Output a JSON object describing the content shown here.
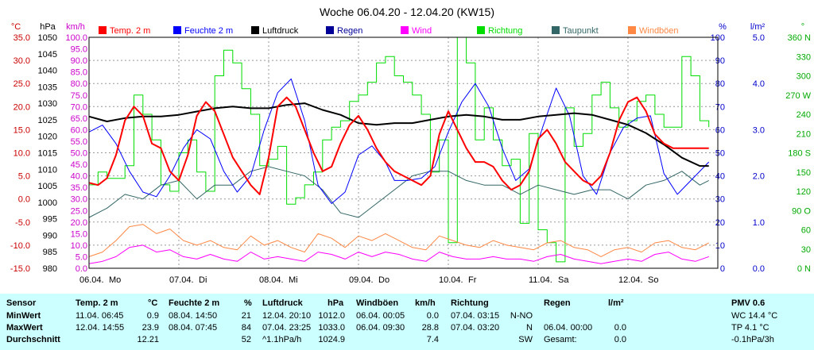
{
  "chart_data": {
    "type": "line",
    "title": "Woche 06.04.20 - 12.04.20 (KW15)",
    "x_ticks": [
      "06.04.",
      "07.04.",
      "08.04.",
      "09.04.",
      "10.04.",
      "11.04.",
      "12.04."
    ],
    "day_labels": [
      "Mo",
      "Di",
      "Mi",
      "Do",
      "Fr",
      "Sa",
      "So"
    ],
    "grid": true,
    "axes": [
      {
        "unit": "°C",
        "color": "#cc0000",
        "min": -15,
        "max": 35,
        "ticks": [
          "35.0",
          "30.0",
          "25.0",
          "20.0",
          "15.0",
          "10.0",
          "5.0",
          "0.0",
          "-5.0",
          "-10.0",
          "-15.0"
        ]
      },
      {
        "unit": "hPa",
        "color": "#000000",
        "min": 980,
        "max": 1050,
        "ticks": [
          "1050",
          "1045",
          "1040",
          "1035",
          "1030",
          "1025",
          "1020",
          "1015",
          "1010",
          "1005",
          "1000",
          "995",
          "990",
          "985",
          "980"
        ]
      },
      {
        "unit": "km/h",
        "color": "#cc00cc",
        "min": 0,
        "max": 100,
        "ticks": [
          "100.0",
          "95.0",
          "90.0",
          "85.0",
          "80.0",
          "75.0",
          "70.0",
          "65.0",
          "60.0",
          "55.0",
          "50.0",
          "45.0",
          "40.0",
          "35.0",
          "30.0",
          "25.0",
          "20.0",
          "15.0",
          "10.0",
          "5.0",
          "0.0"
        ]
      },
      {
        "unit": "%",
        "color": "#0000cc",
        "min": 0,
        "max": 100,
        "ticks": [
          "100",
          "90",
          "80",
          "70",
          "60",
          "50",
          "40",
          "30",
          "20",
          "10",
          "0"
        ]
      },
      {
        "unit": "l/m²",
        "color": "#0000cc",
        "min": 0,
        "max": 5,
        "ticks": [
          "5.0",
          "4.0",
          "3.0",
          "2.0",
          "1.0",
          "0.0"
        ]
      },
      {
        "unit": "°",
        "color": "#00aa00",
        "min": 0,
        "max": 360,
        "ticks": [
          "360 N",
          "330",
          "300",
          "270 W",
          "240",
          "210",
          "180 S",
          "150",
          "120",
          "90 O",
          "60",
          "30",
          "0 N"
        ]
      }
    ],
    "legend": [
      {
        "name": "Temp. 2 m",
        "color": "#ff0000"
      },
      {
        "name": "Feuchte  2 m",
        "color": "#0000ff"
      },
      {
        "name": "Luftdruck",
        "color": "#000000"
      },
      {
        "name": "Regen",
        "color": "#000099"
      },
      {
        "name": "Wind",
        "color": "#ff00ff"
      },
      {
        "name": "Richtung",
        "color": "#00dd00"
      },
      {
        "name": "Taupunkt",
        "color": "#336666"
      },
      {
        "name": "Windböen",
        "color": "#ff8844"
      }
    ],
    "series": [
      {
        "name": "Temp. 2 m",
        "color": "#ff0000",
        "axis": 0,
        "width": 2,
        "x": [
          0,
          0.1,
          0.2,
          0.3,
          0.4,
          0.5,
          0.6,
          0.7,
          0.8,
          0.9,
          1.0,
          1.1,
          1.2,
          1.3,
          1.4,
          1.5,
          1.6,
          1.7,
          1.8,
          1.9,
          2.0,
          2.1,
          2.2,
          2.3,
          2.4,
          2.5,
          2.6,
          2.7,
          2.8,
          2.9,
          3.0,
          3.1,
          3.2,
          3.3,
          3.4,
          3.5,
          3.6,
          3.7,
          3.8,
          3.9,
          4.0,
          4.1,
          4.2,
          4.3,
          4.4,
          4.5,
          4.6,
          4.7,
          4.8,
          4.9,
          5.0,
          5.1,
          5.2,
          5.3,
          5.4,
          5.5,
          5.6,
          5.7,
          5.8,
          5.9,
          6.0,
          6.1,
          6.2,
          6.3,
          6.4,
          6.5,
          6.6,
          6.7,
          6.8,
          6.9
        ],
        "values": [
          3.5,
          3.0,
          4.5,
          9.5,
          17,
          20,
          18,
          12,
          11,
          6,
          4,
          9.5,
          18,
          21,
          19,
          14,
          9,
          6,
          3,
          1,
          9,
          20,
          22,
          20,
          15,
          10,
          6,
          7,
          12,
          16,
          18,
          15,
          11,
          8,
          6,
          5,
          4,
          3,
          5,
          14,
          19,
          15,
          11,
          8,
          8,
          7,
          4,
          2,
          3,
          6,
          13,
          15,
          12,
          8,
          6,
          4,
          3,
          5,
          10,
          17,
          21,
          22,
          19,
          14,
          12,
          11,
          11,
          11,
          11,
          11
        ]
      },
      {
        "name": "Feuchte  2 m",
        "color": "#0000ff",
        "axis": 3,
        "width": 1,
        "x": [
          0,
          0.15,
          0.3,
          0.45,
          0.6,
          0.75,
          0.9,
          1.05,
          1.2,
          1.35,
          1.5,
          1.65,
          1.8,
          1.95,
          2.1,
          2.25,
          2.4,
          2.55,
          2.7,
          2.85,
          3.0,
          3.15,
          3.3,
          3.4,
          3.55,
          3.7,
          3.85,
          4.0,
          4.15,
          4.3,
          4.45,
          4.6,
          4.75,
          4.9,
          5.05,
          5.2,
          5.35,
          5.5,
          5.65,
          5.8,
          5.95,
          6.1,
          6.25,
          6.4,
          6.55,
          6.7,
          6.9
        ],
        "values": [
          59,
          62,
          54,
          42,
          33,
          31,
          40,
          52,
          60,
          56,
          42,
          33,
          40,
          60,
          76,
          82,
          64,
          36,
          28,
          33,
          49,
          53,
          46,
          38,
          38,
          39,
          44,
          59,
          72,
          80,
          70,
          52,
          38,
          43,
          61,
          78,
          66,
          40,
          32,
          50,
          61,
          65,
          66,
          41,
          32,
          38,
          46
        ]
      },
      {
        "name": "Luftdruck",
        "color": "#000000",
        "axis": 1,
        "width": 2,
        "x": [
          0,
          0.2,
          0.4,
          0.6,
          0.8,
          1.0,
          1.2,
          1.4,
          1.6,
          1.8,
          2.0,
          2.2,
          2.4,
          2.6,
          2.8,
          3.0,
          3.2,
          3.4,
          3.6,
          3.8,
          4.0,
          4.2,
          4.4,
          4.6,
          4.8,
          5.0,
          5.2,
          5.4,
          5.6,
          5.8,
          6.0,
          6.2,
          6.4,
          6.6,
          6.8,
          6.9
        ],
        "values": [
          1026,
          1024.5,
          1025.5,
          1026,
          1026,
          1026.5,
          1027.5,
          1028.5,
          1029,
          1028.5,
          1028.5,
          1029.5,
          1030,
          1028,
          1026.5,
          1024,
          1023.5,
          1024,
          1024,
          1025,
          1026,
          1026.5,
          1026,
          1025,
          1025,
          1026,
          1026.5,
          1027,
          1026.5,
          1025,
          1023.5,
          1021,
          1017.5,
          1013.5,
          1011,
          1011
        ]
      },
      {
        "name": "Taupunkt",
        "color": "#336666",
        "axis": 0,
        "width": 1,
        "x": [
          0,
          0.2,
          0.4,
          0.6,
          0.8,
          1.0,
          1.2,
          1.4,
          1.6,
          1.8,
          2.0,
          2.2,
          2.4,
          2.6,
          2.8,
          3.0,
          3.2,
          3.4,
          3.6,
          3.8,
          4.0,
          4.2,
          4.4,
          4.6,
          4.8,
          5.0,
          5.2,
          5.4,
          5.6,
          5.8,
          6.0,
          6.2,
          6.4,
          6.6,
          6.8,
          6.9
        ],
        "values": [
          -4,
          -2,
          1,
          0,
          3,
          4,
          0,
          3,
          3,
          6,
          7,
          6,
          5,
          2,
          -3,
          -4,
          -1,
          2,
          5,
          6,
          6,
          4,
          3,
          3,
          1,
          3,
          2,
          1,
          2,
          2,
          0,
          3,
          4,
          6,
          3,
          4
        ]
      },
      {
        "name": "Windböen",
        "color": "#ff8844",
        "axis": 2,
        "width": 1,
        "x": [
          0,
          0.15,
          0.3,
          0.45,
          0.6,
          0.75,
          0.9,
          1.05,
          1.2,
          1.35,
          1.5,
          1.65,
          1.8,
          1.95,
          2.1,
          2.25,
          2.4,
          2.55,
          2.7,
          2.85,
          3.0,
          3.15,
          3.3,
          3.45,
          3.6,
          3.75,
          3.9,
          4.05,
          4.2,
          4.35,
          4.5,
          4.65,
          4.8,
          4.95,
          5.1,
          5.25,
          5.4,
          5.55,
          5.7,
          5.85,
          6.0,
          6.15,
          6.3,
          6.45,
          6.6,
          6.75,
          6.9
        ],
        "values": [
          5,
          7,
          12,
          18,
          19,
          15,
          17,
          12,
          10,
          12,
          9,
          8,
          14,
          10,
          12,
          9,
          7,
          15,
          13,
          9,
          14,
          12,
          15,
          12,
          9,
          8,
          14,
          12,
          10,
          9,
          12,
          10,
          9,
          8,
          11,
          12,
          9,
          8,
          5,
          8,
          9,
          7,
          11,
          12,
          9,
          8,
          11
        ]
      },
      {
        "name": "Wind",
        "color": "#ff00ff",
        "axis": 2,
        "width": 1,
        "x": [
          0,
          0.15,
          0.3,
          0.45,
          0.6,
          0.75,
          0.9,
          1.05,
          1.2,
          1.35,
          1.5,
          1.65,
          1.8,
          1.95,
          2.1,
          2.25,
          2.4,
          2.55,
          2.7,
          2.85,
          3.0,
          3.15,
          3.3,
          3.45,
          3.6,
          3.75,
          3.9,
          4.05,
          4.2,
          4.35,
          4.5,
          4.65,
          4.8,
          4.95,
          5.1,
          5.25,
          5.4,
          5.55,
          5.7,
          5.85,
          6.0,
          6.15,
          6.3,
          6.45,
          6.6,
          6.75,
          6.9
        ],
        "values": [
          2,
          3,
          5,
          9,
          10,
          7,
          8,
          5,
          4,
          6,
          4,
          3,
          7,
          4,
          5,
          4,
          3,
          7,
          6,
          4,
          7,
          5,
          7,
          6,
          4,
          3,
          7,
          5,
          4,
          4,
          5,
          4,
          4,
          3,
          5,
          6,
          4,
          3,
          2,
          3,
          4,
          3,
          6,
          7,
          4,
          3,
          5
        ]
      },
      {
        "name": "Richtung",
        "color": "#00dd00",
        "axis": 5,
        "width": 1,
        "step": true,
        "x": [
          0,
          0.1,
          0.2,
          0.3,
          0.4,
          0.5,
          0.6,
          0.7,
          0.8,
          0.9,
          1.0,
          1.1,
          1.2,
          1.3,
          1.4,
          1.5,
          1.6,
          1.7,
          1.8,
          1.9,
          2.0,
          2.1,
          2.2,
          2.3,
          2.4,
          2.5,
          2.6,
          2.7,
          2.8,
          2.9,
          3.0,
          3.1,
          3.2,
          3.3,
          3.4,
          3.5,
          3.6,
          3.7,
          3.8,
          3.9,
          4.0,
          4.1,
          4.2,
          4.3,
          4.4,
          4.5,
          4.6,
          4.7,
          4.8,
          4.9,
          5.0,
          5.1,
          5.2,
          5.3,
          5.4,
          5.5,
          5.6,
          5.7,
          5.8,
          5.9,
          6.0,
          6.1,
          6.2,
          6.3,
          6.4,
          6.5,
          6.6,
          6.7,
          6.8,
          6.9
        ],
        "values": [
          130,
          150,
          140,
          140,
          160,
          270,
          240,
          200,
          130,
          120,
          180,
          200,
          150,
          120,
          300,
          340,
          320,
          280,
          240,
          160,
          170,
          190,
          100,
          110,
          130,
          150,
          200,
          220,
          230,
          260,
          270,
          290,
          320,
          330,
          300,
          290,
          270,
          240,
          150,
          200,
          40,
          360,
          320,
          200,
          250,
          200,
          160,
          170,
          70,
          210,
          60,
          40,
          10,
          250,
          190,
          210,
          270,
          290,
          250,
          220,
          230,
          260,
          270,
          240,
          220,
          220,
          330,
          300,
          230,
          220
        ]
      },
      {
        "name": "Regen",
        "color": "#000099",
        "axis": 4,
        "width": 1,
        "x": [
          0,
          6.9
        ],
        "values": [
          0,
          0
        ]
      }
    ]
  },
  "stats": {
    "header": {
      "sensor": "Sensor",
      "temp": "Temp. 2 m",
      "temp_unit": "°C",
      "feuchte": "Feuchte  2 m",
      "feuchte_unit": "%",
      "luftdruck": "Luftdruck",
      "luftdruck_unit": "hPa",
      "windboeen": "Windböen",
      "windboeen_unit": "km/h",
      "richtung": "Richtung",
      "regen": "Regen",
      "regen_unit": "l/m²",
      "pmv": "PMV 0.6"
    },
    "rows": [
      {
        "label": "MinWert",
        "temp_time": "11.04.  06:45",
        "temp_val": "0.9",
        "feuchte_time": "08.04.  14:50",
        "feuchte_val": "21",
        "luftdruck_time": "12.04.  20:10",
        "luftdruck_val": "1012.0",
        "windboeen_time": "06.04.  00:05",
        "windboeen_val": "0.0",
        "richtung_time": "07.04.  03:15",
        "richtung_val": "N-NO",
        "regen_time": "",
        "regen_val": "",
        "pmv": "WC 14.4 °C"
      },
      {
        "label": "MaxWert",
        "temp_time": "12.04.  14:55",
        "temp_val": "23.9",
        "feuchte_time": "08.04.  07:45",
        "feuchte_val": "84",
        "luftdruck_time": "07.04.  23:25",
        "luftdruck_val": "1033.0",
        "windboeen_time": "06.04.  09:30",
        "windboeen_val": "28.8",
        "richtung_time": "07.04.  03:20",
        "richtung_val": "N",
        "regen_time": "06.04.  00:00",
        "regen_val": "0.0",
        "pmv": "TP 4.1 °C"
      },
      {
        "label": "Durchschnitt",
        "temp_time": "",
        "temp_val": "12.21",
        "feuchte_time": "",
        "feuchte_val": "52",
        "luftdruck_time": "^1.1hPa/h",
        "luftdruck_val": "1024.9",
        "windboeen_time": "",
        "windboeen_val": "7.4",
        "richtung_time": "",
        "richtung_val": "SW",
        "regen_time": "Gesamt:",
        "regen_val": "0.0",
        "pmv": "-0.1hPa/3h"
      }
    ]
  }
}
